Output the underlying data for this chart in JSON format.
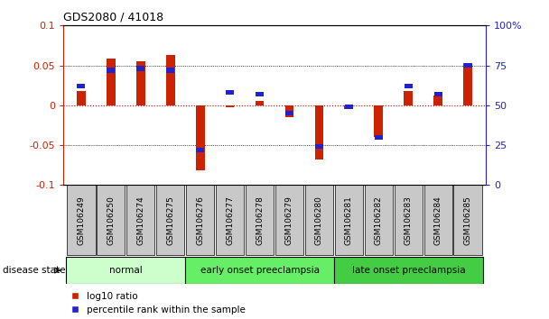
{
  "title": "GDS2080 / 41018",
  "samples": [
    "GSM106249",
    "GSM106250",
    "GSM106274",
    "GSM106275",
    "GSM106276",
    "GSM106277",
    "GSM106278",
    "GSM106279",
    "GSM106280",
    "GSM106281",
    "GSM106282",
    "GSM106283",
    "GSM106284",
    "GSM106285"
  ],
  "log10_ratio": [
    0.018,
    0.058,
    0.055,
    0.063,
    -0.082,
    -0.002,
    0.005,
    -0.015,
    -0.068,
    -0.005,
    -0.04,
    0.018,
    0.012,
    0.053
  ],
  "percentile_rank_raw": [
    62,
    72,
    73,
    72,
    22,
    58,
    57,
    45,
    24,
    49,
    30,
    62,
    57,
    75
  ],
  "groups": [
    {
      "label": "normal",
      "start": 0,
      "end": 4,
      "color": "#ccffcc"
    },
    {
      "label": "early onset preeclampsia",
      "start": 4,
      "end": 9,
      "color": "#66ee66"
    },
    {
      "label": "late onset preeclampsia",
      "start": 9,
      "end": 14,
      "color": "#44cc44"
    }
  ],
  "ylim": [
    -0.1,
    0.1
  ],
  "y2lim": [
    0,
    100
  ],
  "yticks_left": [
    -0.1,
    -0.05,
    0,
    0.05,
    0.1
  ],
  "yticks_right": [
    0,
    25,
    50,
    75,
    100
  ],
  "bar_width": 0.3,
  "log10_color": "#cc2200",
  "percentile_color": "#2222cc",
  "zero_line_color": "#cc0000",
  "bg_color": "#ffffff",
  "legend_log10": "log10 ratio",
  "legend_pct": "percentile rank within the sample",
  "disease_state_label": "disease state",
  "tick_bg_color": "#c8c8c8"
}
